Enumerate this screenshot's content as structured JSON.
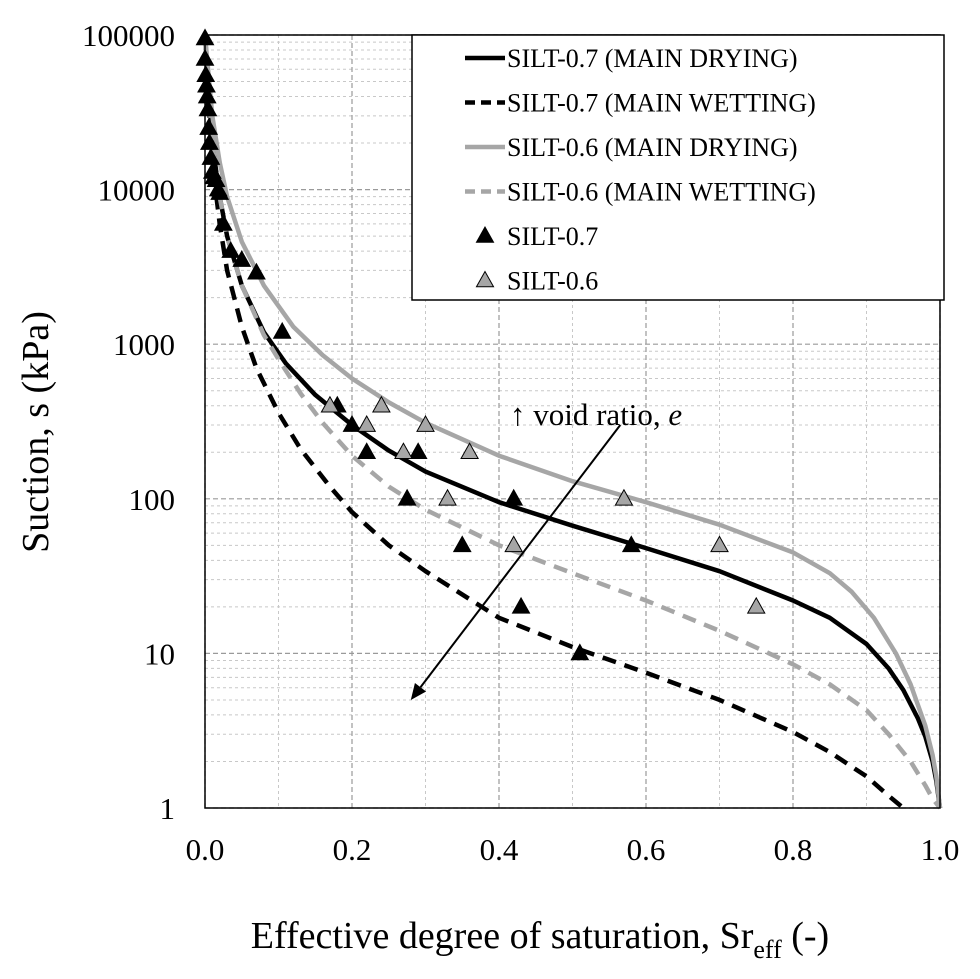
{
  "chart_data": {
    "type": "scatter",
    "xlabel": "Effective degree of saturation, Sr",
    "xlabel_subscript": "eff",
    "xlabel_suffix": " (-)",
    "ylabel": "Suction, s (kPa)",
    "xlim": [
      0,
      1
    ],
    "ylim": [
      1,
      100000
    ],
    "y_scale": "log",
    "x_ticks": [
      "0.0",
      "0.2",
      "0.4",
      "0.6",
      "0.8",
      "1.0"
    ],
    "y_ticks": [
      "1",
      "10",
      "100",
      "1000",
      "10000",
      "100000"
    ],
    "grid": true,
    "legend_position": "top-right",
    "annotation": {
      "text": "↑ void ratio, ",
      "text_italic": "e",
      "arrow_from": [
        0.565,
        300
      ],
      "arrow_to": [
        0.28,
        5
      ]
    },
    "series": [
      {
        "name": "SILT-0.7 (MAIN DRYING)",
        "kind": "line",
        "color": "#000000",
        "dash": "solid",
        "x": [
          0.0,
          0.01,
          0.02,
          0.03,
          0.05,
          0.08,
          0.11,
          0.15,
          0.2,
          0.25,
          0.3,
          0.4,
          0.5,
          0.6,
          0.7,
          0.8,
          0.85,
          0.9,
          0.93,
          0.95,
          0.97,
          0.98,
          0.99,
          0.995,
          1.0
        ],
        "y": [
          100000,
          20000,
          9000,
          5000,
          2400,
          1200,
          750,
          470,
          300,
          205,
          150,
          95,
          67,
          48,
          34,
          22,
          17,
          11.5,
          8,
          5.8,
          3.8,
          2.9,
          2.0,
          1.5,
          1.0
        ]
      },
      {
        "name": "SILT-0.7 (MAIN WETTING)",
        "kind": "line",
        "color": "#000000",
        "dash": "dashed",
        "x": [
          0.0,
          0.01,
          0.02,
          0.03,
          0.05,
          0.07,
          0.1,
          0.13,
          0.17,
          0.2,
          0.25,
          0.3,
          0.4,
          0.5,
          0.6,
          0.7,
          0.8,
          0.85,
          0.9,
          0.93,
          0.95
        ],
        "y": [
          100000,
          15000,
          6000,
          3000,
          1300,
          700,
          360,
          210,
          120,
          82,
          50,
          34,
          17,
          11,
          7.5,
          5,
          3.1,
          2.3,
          1.6,
          1.2,
          1.0
        ]
      },
      {
        "name": "SILT-0.6 (MAIN DRYING)",
        "kind": "line",
        "color": "#a6a6a6",
        "dash": "solid",
        "x": [
          0.0,
          0.01,
          0.02,
          0.03,
          0.05,
          0.08,
          0.12,
          0.16,
          0.2,
          0.25,
          0.3,
          0.4,
          0.5,
          0.6,
          0.7,
          0.8,
          0.85,
          0.88,
          0.91,
          0.94,
          0.96,
          0.98,
          0.99,
          0.995,
          1.0
        ],
        "y": [
          100000,
          30000,
          15000,
          9000,
          4600,
          2400,
          1300,
          850,
          600,
          420,
          310,
          190,
          130,
          95,
          68,
          45,
          33,
          25,
          17,
          10,
          6.3,
          3.4,
          2.2,
          1.6,
          1.0
        ]
      },
      {
        "name": "SILT-0.6 (MAIN WETTING)",
        "kind": "line",
        "color": "#a6a6a6",
        "dash": "dashed",
        "x": [
          0.0,
          0.01,
          0.02,
          0.03,
          0.05,
          0.08,
          0.1,
          0.13,
          0.16,
          0.2,
          0.25,
          0.3,
          0.4,
          0.5,
          0.6,
          0.7,
          0.8,
          0.85,
          0.9,
          0.93,
          0.96,
          0.98,
          0.99,
          1.0
        ],
        "y": [
          100000,
          20000,
          9000,
          5000,
          2400,
          1150,
          800,
          480,
          310,
          190,
          120,
          85,
          50,
          33,
          22,
          14,
          8.5,
          6.3,
          4.3,
          3.0,
          2.0,
          1.4,
          1.15,
          1.0
        ]
      },
      {
        "name": "SILT-0.7",
        "kind": "markers",
        "color": "#000000",
        "x": [
          0.0,
          0.0,
          0.001,
          0.002,
          0.003,
          0.004,
          0.005,
          0.006,
          0.008,
          0.01,
          0.012,
          0.015,
          0.018,
          0.02,
          0.025,
          0.035,
          0.05,
          0.07,
          0.105,
          0.18,
          0.2,
          0.22,
          0.275,
          0.29,
          0.35,
          0.42,
          0.43,
          0.51,
          0.58
        ],
        "y": [
          95000,
          70000,
          55000,
          47000,
          40000,
          33000,
          25000,
          20000,
          16000,
          13000,
          12000,
          11500,
          10000,
          9500,
          6000,
          4000,
          3500,
          2900,
          1200,
          400,
          300,
          200,
          100,
          200,
          50,
          100,
          20,
          10,
          50
        ]
      },
      {
        "name": "SILT-0.6",
        "kind": "markers",
        "color": "#a6a6a6",
        "x": [
          0.17,
          0.22,
          0.24,
          0.27,
          0.3,
          0.33,
          0.36,
          0.42,
          0.57,
          0.7,
          0.75
        ],
        "y": [
          400,
          300,
          400,
          200,
          300,
          100,
          200,
          50,
          100,
          50,
          20
        ]
      }
    ]
  }
}
